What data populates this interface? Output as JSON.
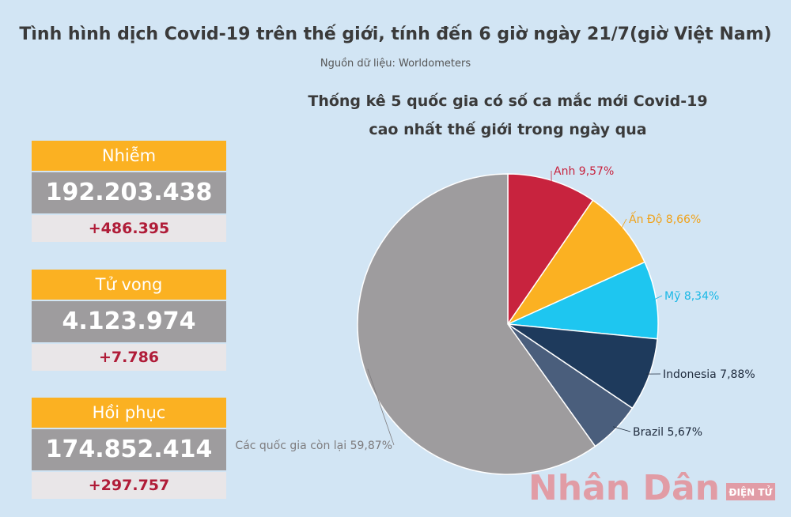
{
  "title": "Tình hình dịch Covid-19 trên thế giới, tính đến 6 giờ ngày 21/7(giờ Việt Nam)",
  "source": "Nguồn dữ liệu: Worldometers",
  "stats": [
    {
      "label": "Nhiễm",
      "total": "192.203.438",
      "new": "+486.395"
    },
    {
      "label": "Tử vong",
      "total": "4.123.974",
      "new": "+7.786"
    },
    {
      "label": "Hồi phục",
      "total": "174.852.414",
      "new": "+297.757"
    }
  ],
  "logo": {
    "name": "Nhân Dân",
    "sub": "ĐIỆN TỬ"
  },
  "chart_data": {
    "type": "pie",
    "title": [
      "Thống kê 5 quốc gia có số ca mắc  mới Covid-19",
      "cao nhất thế giới trong ngày qua"
    ],
    "categories": [
      "Anh",
      "Ấn Độ",
      "Mỹ",
      "Indonesia",
      "Brazil",
      "Các quốc gia còn lại"
    ],
    "values": [
      9.57,
      8.66,
      8.34,
      7.88,
      5.67,
      59.87
    ],
    "value_labels": [
      "9,57%",
      "8,66%",
      "8,34%",
      "7,88%",
      "5,67%",
      "59,87%"
    ],
    "colors": [
      "#c8233e",
      "#fbb122",
      "#1ec6f0",
      "#1e3a5c",
      "#4a5e7c",
      "#9e9c9e"
    ],
    "label_colors": [
      "#c8233e",
      "#f0a21a",
      "#1ab8e6",
      "#1e2a3c",
      "#1e2a3c",
      "#7e7c7e"
    ]
  }
}
